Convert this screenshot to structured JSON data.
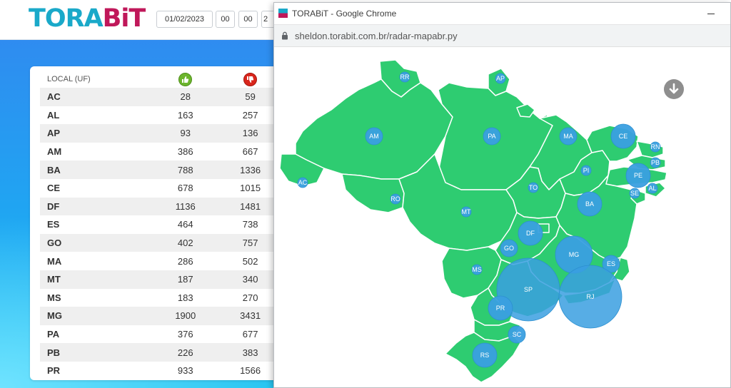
{
  "app": {
    "logo_part1": "TORA",
    "logo_part2": "BiT",
    "date_value": "01/02/2023",
    "hour_value": "00",
    "minute_value": "00",
    "extra_value": "2"
  },
  "table": {
    "header_local": "LOCAL (UF)",
    "header_positive_icon": "thumbs-up-icon",
    "header_negative_icon": "thumbs-down-icon",
    "rows": [
      {
        "uf": "AC",
        "pos": "28",
        "neg": "59"
      },
      {
        "uf": "AL",
        "pos": "163",
        "neg": "257"
      },
      {
        "uf": "AP",
        "pos": "93",
        "neg": "136"
      },
      {
        "uf": "AM",
        "pos": "386",
        "neg": "667"
      },
      {
        "uf": "BA",
        "pos": "788",
        "neg": "1336"
      },
      {
        "uf": "CE",
        "pos": "678",
        "neg": "1015"
      },
      {
        "uf": "DF",
        "pos": "1136",
        "neg": "1481"
      },
      {
        "uf": "ES",
        "pos": "464",
        "neg": "738"
      },
      {
        "uf": "GO",
        "pos": "402",
        "neg": "757"
      },
      {
        "uf": "MA",
        "pos": "286",
        "neg": "502"
      },
      {
        "uf": "MT",
        "pos": "187",
        "neg": "340"
      },
      {
        "uf": "MS",
        "pos": "183",
        "neg": "270"
      },
      {
        "uf": "MG",
        "pos": "1900",
        "neg": "3431"
      },
      {
        "uf": "PA",
        "pos": "376",
        "neg": "677"
      },
      {
        "uf": "PB",
        "pos": "226",
        "neg": "383"
      },
      {
        "uf": "PR",
        "pos": "933",
        "neg": "1566"
      }
    ]
  },
  "chrome": {
    "window_title": "TORABiT - Google Chrome",
    "url": "sheldon.torabit.com.br/radar-mapabr.py"
  },
  "map": {
    "fill_color": "#2ecc71",
    "bubble_color": "#3a9fe0",
    "download_icon": "download-arrow-icon",
    "states": [
      {
        "uf": "RR",
        "size": "small"
      },
      {
        "uf": "AP",
        "size": "small"
      },
      {
        "uf": "AM",
        "size": "medium"
      },
      {
        "uf": "PA",
        "size": "medium"
      },
      {
        "uf": "MA",
        "size": "medium"
      },
      {
        "uf": "CE",
        "size": "large"
      },
      {
        "uf": "RN",
        "size": "small"
      },
      {
        "uf": "PB",
        "size": "small"
      },
      {
        "uf": "PE",
        "size": "large"
      },
      {
        "uf": "AL",
        "size": "small"
      },
      {
        "uf": "SE",
        "size": "small"
      },
      {
        "uf": "PI",
        "size": "small"
      },
      {
        "uf": "AC",
        "size": "small"
      },
      {
        "uf": "RO",
        "size": "small"
      },
      {
        "uf": "TO",
        "size": "small"
      },
      {
        "uf": "BA",
        "size": "large"
      },
      {
        "uf": "MT",
        "size": "small"
      },
      {
        "uf": "DF",
        "size": "large"
      },
      {
        "uf": "GO",
        "size": "medium"
      },
      {
        "uf": "MG",
        "size": "xlarge"
      },
      {
        "uf": "ES",
        "size": "medium"
      },
      {
        "uf": "MS",
        "size": "small"
      },
      {
        "uf": "SP",
        "size": "xxlarge"
      },
      {
        "uf": "RJ",
        "size": "xxlarge"
      },
      {
        "uf": "PR",
        "size": "large"
      },
      {
        "uf": "SC",
        "size": "medium"
      },
      {
        "uf": "RS",
        "size": "large"
      }
    ]
  }
}
